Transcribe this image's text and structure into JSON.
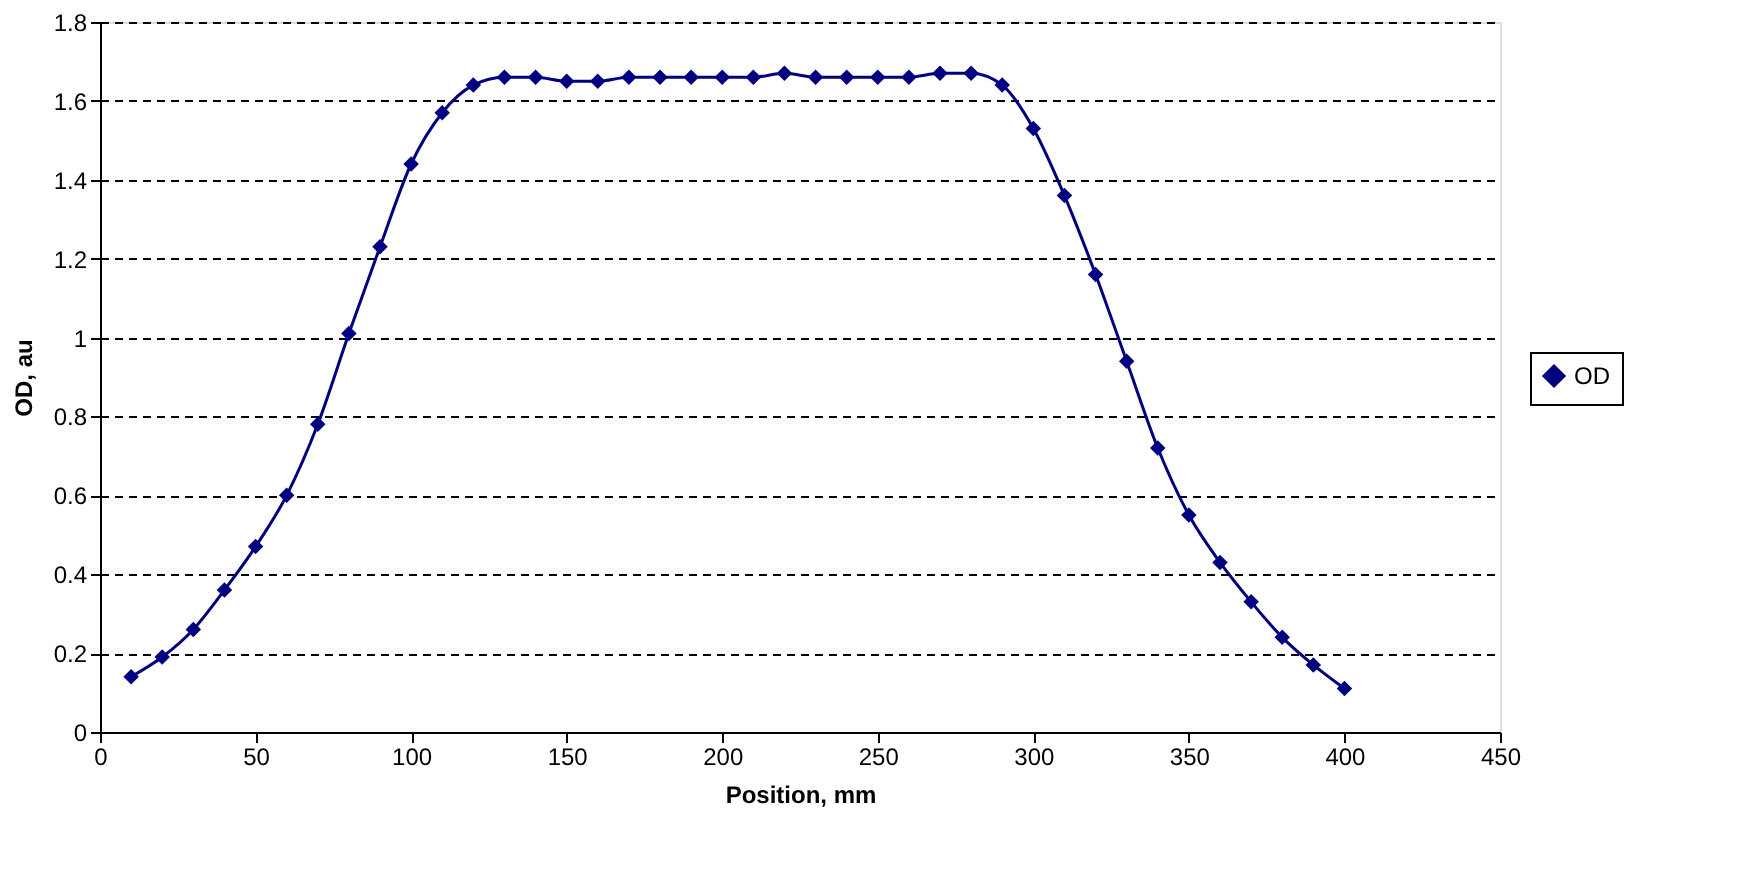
{
  "chart_data": {
    "type": "line",
    "xlabel": "Position, mm",
    "ylabel": "OD, au",
    "x": [
      10,
      20,
      30,
      40,
      50,
      60,
      70,
      80,
      90,
      100,
      110,
      120,
      130,
      140,
      150,
      160,
      170,
      180,
      190,
      200,
      210,
      220,
      230,
      240,
      250,
      260,
      270,
      280,
      290,
      300,
      310,
      320,
      330,
      340,
      350,
      360,
      370,
      380,
      390,
      400
    ],
    "series": [
      {
        "name": "OD",
        "color": "#000080",
        "values": [
          0.14,
          0.19,
          0.26,
          0.36,
          0.47,
          0.6,
          0.78,
          1.01,
          1.23,
          1.44,
          1.57,
          1.64,
          1.66,
          1.66,
          1.65,
          1.65,
          1.66,
          1.66,
          1.66,
          1.66,
          1.66,
          1.67,
          1.66,
          1.66,
          1.66,
          1.66,
          1.67,
          1.67,
          1.64,
          1.53,
          1.36,
          1.16,
          0.94,
          0.72,
          0.55,
          0.43,
          0.33,
          0.24,
          0.17,
          0.11
        ]
      }
    ],
    "xlim": [
      0,
      450
    ],
    "xticks": [
      0,
      50,
      100,
      150,
      200,
      250,
      300,
      350,
      400,
      450
    ],
    "ylim": [
      0,
      1.8
    ],
    "yticks": [
      0,
      0.2,
      0.4,
      0.6,
      0.8,
      1,
      1.2,
      1.4,
      1.6,
      1.8
    ],
    "grid": "y",
    "legend": "right",
    "marker": "diamond",
    "line_style": "solid"
  }
}
